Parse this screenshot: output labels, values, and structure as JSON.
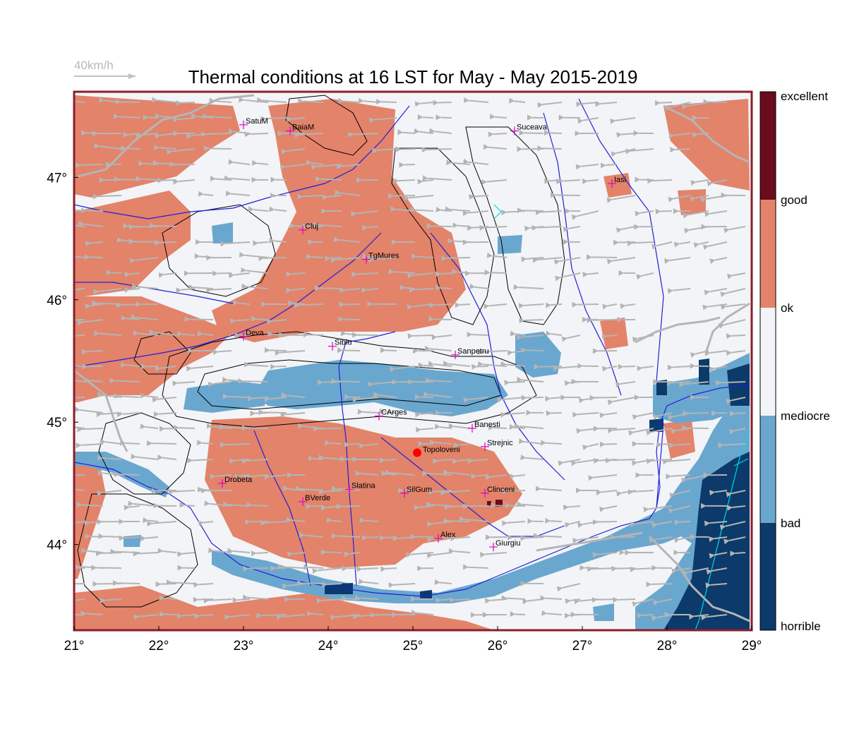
{
  "title": "Thermal conditions at 16 LST for May - May  2015-2019",
  "wind_scale_label": "40km/h",
  "colors": {
    "horrible": "#0b3a6b",
    "bad": "#6aa7cf",
    "mediocre": "#f2f4f7",
    "ok": "#e3836a",
    "good": "#6b0b1e",
    "border": "#b5b5b5",
    "river": "#2020d8",
    "contour": "#000000",
    "city_marker": "#e000c0",
    "highlight": "#ff0000",
    "frame": "#8b1e2a"
  },
  "legend": {
    "labels": [
      "excellent",
      "good",
      "ok",
      "mediocre",
      "bad",
      "horrible"
    ]
  },
  "axes": {
    "x_ticks": [
      "21°",
      "22°",
      "23°",
      "24°",
      "25°",
      "26°",
      "27°",
      "28°",
      "29°"
    ],
    "y_ticks": [
      "47°",
      "46°",
      "45°",
      "44°"
    ],
    "lon_range": [
      21,
      29
    ],
    "lat_range": [
      43.3,
      47.7
    ]
  },
  "cities": [
    {
      "name": "SatuM",
      "lon": 23.0,
      "lat": 47.43
    },
    {
      "name": "BaiaM",
      "lon": 23.55,
      "lat": 47.38
    },
    {
      "name": "Suceava",
      "lon": 26.2,
      "lat": 47.38
    },
    {
      "name": "Iasi",
      "lon": 27.35,
      "lat": 46.95
    },
    {
      "name": "Cluj",
      "lon": 23.7,
      "lat": 46.57
    },
    {
      "name": "TgMures",
      "lon": 24.45,
      "lat": 46.33
    },
    {
      "name": "Deva",
      "lon": 23.0,
      "lat": 45.7
    },
    {
      "name": "Sibiu",
      "lon": 24.05,
      "lat": 45.62
    },
    {
      "name": "Sanpetru",
      "lon": 25.5,
      "lat": 45.55
    },
    {
      "name": "CArges",
      "lon": 24.6,
      "lat": 45.05
    },
    {
      "name": "Banesti",
      "lon": 25.7,
      "lat": 44.95
    },
    {
      "name": "Strejnic",
      "lon": 25.85,
      "lat": 44.8
    },
    {
      "name": "Drobeta",
      "lon": 22.75,
      "lat": 44.5
    },
    {
      "name": "Slatina",
      "lon": 24.25,
      "lat": 44.45
    },
    {
      "name": "SilGum",
      "lon": 24.9,
      "lat": 44.42
    },
    {
      "name": "Clinceni",
      "lon": 25.85,
      "lat": 44.42
    },
    {
      "name": "BVerde",
      "lon": 23.7,
      "lat": 44.35
    },
    {
      "name": "Alex",
      "lon": 25.3,
      "lat": 44.05
    },
    {
      "name": "Giurgiu",
      "lon": 25.95,
      "lat": 43.98
    }
  ],
  "highlight": {
    "name": "Topoloveni",
    "lon": 25.05,
    "lat": 44.75
  }
}
